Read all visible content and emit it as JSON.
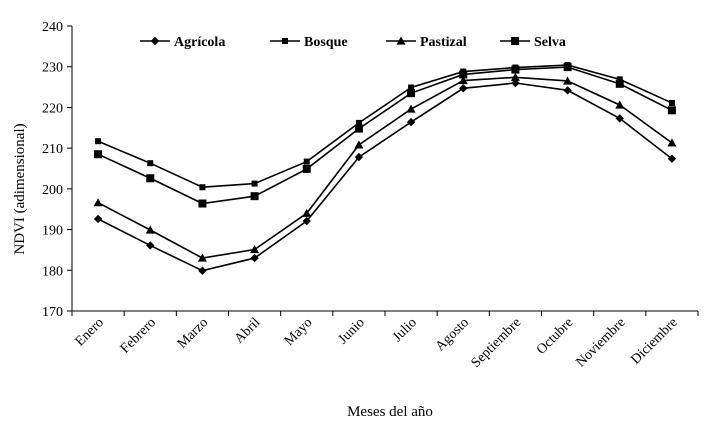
{
  "chart_data": {
    "type": "line",
    "title": "",
    "xlabel": "Meses del año",
    "ylabel": "NDVI (adimensional)",
    "ylim": [
      170,
      240
    ],
    "yticks": [
      170,
      180,
      190,
      200,
      210,
      220,
      230,
      240
    ],
    "grid": false,
    "legend_position": "top",
    "categories": [
      "Enero",
      "Febrero",
      "Marzo",
      "Abril",
      "Mayo",
      "Junio",
      "Julio",
      "Agosto",
      "Septiembre",
      "Octubre",
      "Noviembre",
      "Diciembre"
    ],
    "series": [
      {
        "name": "Agrícola",
        "marker": "diamond",
        "values": [
          192.6,
          186.1,
          179.9,
          183.0,
          192.1,
          207.8,
          216.4,
          224.7,
          226.0,
          224.2,
          217.3,
          207.4
        ]
      },
      {
        "name": "Bosque",
        "marker": "small-square",
        "values": [
          211.7,
          206.3,
          200.4,
          201.3,
          206.7,
          216.2,
          224.9,
          228.8,
          229.8,
          230.4,
          226.9,
          221.1
        ]
      },
      {
        "name": "Pastizal",
        "marker": "triangle",
        "values": [
          196.6,
          189.9,
          183.0,
          185.1,
          194.0,
          210.8,
          219.6,
          226.6,
          227.4,
          226.5,
          220.6,
          211.3
        ]
      },
      {
        "name": "Selva",
        "marker": "square",
        "values": [
          208.5,
          202.6,
          196.4,
          198.2,
          204.9,
          214.8,
          223.5,
          228.1,
          229.3,
          229.9,
          225.8,
          219.3
        ]
      }
    ],
    "colors": {
      "line": "#000000",
      "background": "#ffffff"
    }
  }
}
